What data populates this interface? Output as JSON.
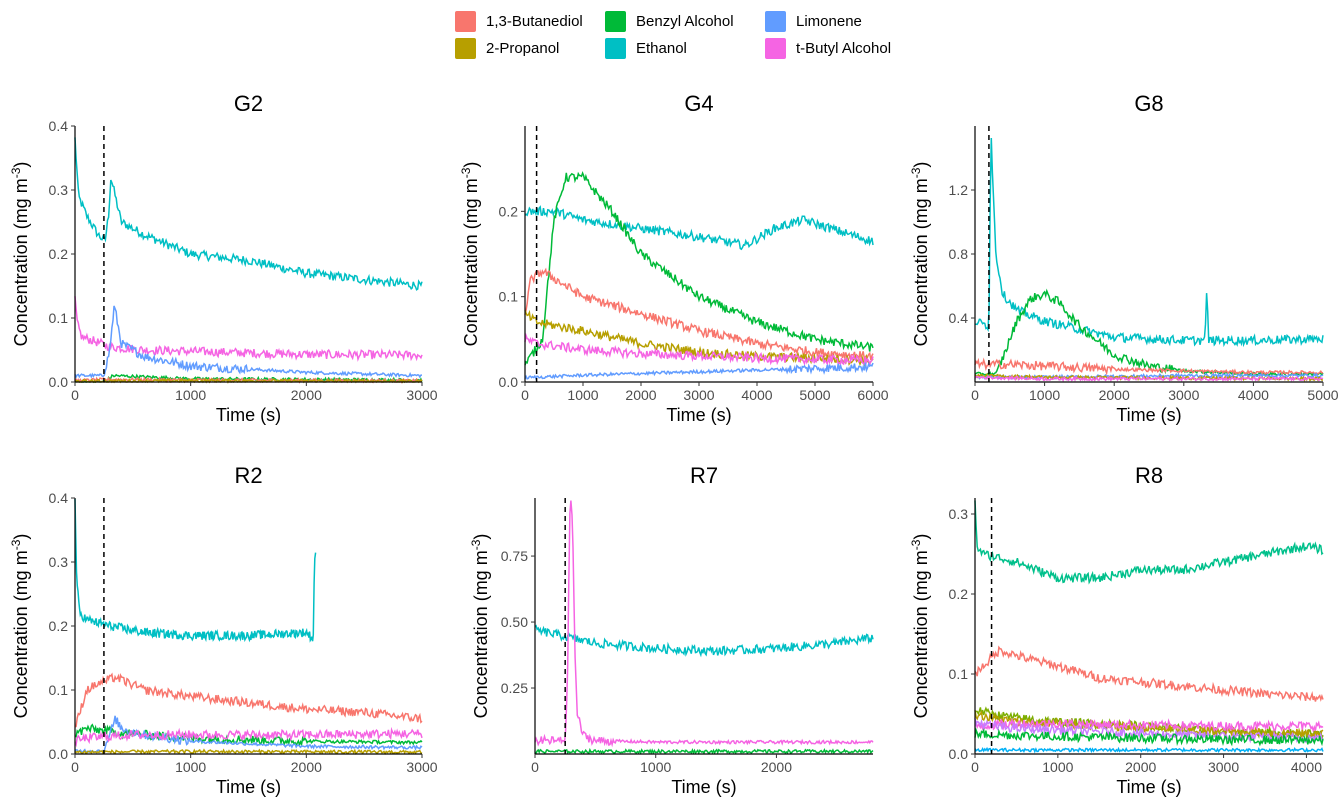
{
  "legend": [
    {
      "name": "1,3-Butanediol",
      "color": "#F8766D"
    },
    {
      "name": "2-Propanol",
      "color": "#B79F00"
    },
    {
      "name": "Benzyl Alcohol",
      "color": "#00BA38"
    },
    {
      "name": "Ethanol",
      "color": "#00BFC4"
    },
    {
      "name": "Limonene",
      "color": "#619CFF"
    },
    {
      "name": "t-Butyl Alcohol",
      "color": "#F564E3"
    }
  ],
  "chart_data": [
    {
      "type": "line",
      "title": "G2",
      "xlabel": "Time (s)",
      "ylabel": "Concentration (mg m-3)",
      "xlim": [
        0,
        3000
      ],
      "ylim": [
        0,
        0.4
      ],
      "xticks": [
        0,
        1000,
        2000,
        3000
      ],
      "yticks": [
        0.0,
        0.1,
        0.2,
        0.3,
        0.4
      ],
      "xtick_labels": [
        "0",
        "1000",
        "2000",
        "3000"
      ],
      "ytick_labels": [
        "0.0",
        "0.1",
        "0.2",
        "0.3",
        "0.4"
      ],
      "vline": 250,
      "series": [
        {
          "name": "Ethanol",
          "color": "#00BFC4",
          "x": [
            0,
            30,
            100,
            200,
            260,
            290,
            310,
            400,
            600,
            1000,
            1500,
            2000,
            2500,
            3000
          ],
          "y": [
            0.38,
            0.29,
            0.26,
            0.23,
            0.22,
            0.26,
            0.32,
            0.25,
            0.23,
            0.2,
            0.19,
            0.17,
            0.16,
            0.15
          ]
        },
        {
          "name": "t-Butyl Alcohol",
          "color": "#F564E3",
          "x": [
            0,
            20,
            60,
            150,
            300,
            600,
            1000,
            2000,
            3000
          ],
          "y": [
            0.13,
            0.09,
            0.07,
            0.065,
            0.055,
            0.05,
            0.048,
            0.043,
            0.042
          ]
        },
        {
          "name": "Limonene",
          "color": "#619CFF",
          "x": [
            0,
            250,
            300,
            340,
            400,
            600,
            1000,
            2000,
            3000
          ],
          "y": [
            0.01,
            0.01,
            0.05,
            0.12,
            0.06,
            0.04,
            0.025,
            0.015,
            0.01
          ]
        },
        {
          "name": "Benzyl Alcohol",
          "color": "#00BA38",
          "x": [
            0,
            250,
            330,
            600,
            1000,
            3000
          ],
          "y": [
            0.0,
            0.0,
            0.01,
            0.008,
            0.005,
            0.003
          ]
        },
        {
          "name": "1,3-Butanediol",
          "color": "#F8766D",
          "x": [
            0,
            300,
            1000,
            3000
          ],
          "y": [
            0.002,
            0.004,
            0.003,
            0.002
          ]
        },
        {
          "name": "2-Propanol",
          "color": "#B79F00",
          "x": [
            0,
            1000,
            3000
          ],
          "y": [
            0.001,
            0.002,
            0.001
          ]
        }
      ]
    },
    {
      "type": "line",
      "title": "G4",
      "xlabel": "Time (s)",
      "ylabel": "Concentration (mg m-3)",
      "xlim": [
        0,
        6000
      ],
      "ylim": [
        0,
        0.3
      ],
      "xticks": [
        0,
        1000,
        2000,
        3000,
        4000,
        5000,
        6000
      ],
      "yticks": [
        0.0,
        0.1,
        0.2
      ],
      "xtick_labels": [
        "0",
        "1000",
        "2000",
        "3000",
        "4000",
        "5000",
        "6000"
      ],
      "ytick_labels": [
        "0.0",
        "0.1",
        "0.2"
      ],
      "vline": 200,
      "series": [
        {
          "name": "Ethanol",
          "color": "#00BFC4",
          "x": [
            0,
            500,
            1000,
            2000,
            3000,
            3800,
            4300,
            4800,
            5500,
            6000
          ],
          "y": [
            0.2,
            0.2,
            0.19,
            0.18,
            0.17,
            0.16,
            0.18,
            0.19,
            0.175,
            0.165
          ]
        },
        {
          "name": "Benzyl Alcohol",
          "color": "#00BA38",
          "x": [
            0,
            300,
            500,
            700,
            1000,
            1500,
            2000,
            3000,
            4000,
            5000,
            6000
          ],
          "y": [
            0.02,
            0.05,
            0.19,
            0.24,
            0.24,
            0.2,
            0.15,
            0.1,
            0.07,
            0.05,
            0.04
          ]
        },
        {
          "name": "1,3-Butanediol",
          "color": "#F8766D",
          "x": [
            0,
            100,
            300,
            1000,
            2000,
            3000,
            4000,
            5000,
            6000
          ],
          "y": [
            0.08,
            0.12,
            0.13,
            0.1,
            0.08,
            0.06,
            0.045,
            0.035,
            0.03
          ]
        },
        {
          "name": "2-Propanol",
          "color": "#B79F00",
          "x": [
            0,
            200,
            1000,
            2000,
            3000,
            4000,
            5000,
            6000
          ],
          "y": [
            0.08,
            0.07,
            0.06,
            0.045,
            0.035,
            0.03,
            0.028,
            0.025
          ]
        },
        {
          "name": "t-Butyl Alcohol",
          "color": "#F564E3",
          "x": [
            0,
            200,
            1000,
            2000,
            4000,
            6000
          ],
          "y": [
            0.05,
            0.045,
            0.038,
            0.033,
            0.028,
            0.025
          ]
        },
        {
          "name": "Limonene",
          "color": "#619CFF",
          "x": [
            0,
            1000,
            2000,
            3000,
            4000,
            5000,
            6000
          ],
          "y": [
            0.005,
            0.008,
            0.01,
            0.012,
            0.014,
            0.016,
            0.018
          ]
        }
      ]
    },
    {
      "type": "line",
      "title": "G8",
      "xlabel": "Time (s)",
      "ylabel": "Concentration (mg m-3)",
      "xlim": [
        0,
        5000
      ],
      "ylim": [
        0,
        1.6
      ],
      "xticks": [
        0,
        1000,
        2000,
        3000,
        4000,
        5000
      ],
      "yticks": [
        0.4,
        0.8,
        1.2
      ],
      "xtick_labels": [
        "0",
        "1000",
        "2000",
        "3000",
        "4000",
        "5000"
      ],
      "ytick_labels": [
        "0.4",
        "0.8",
        "1.2"
      ],
      "vline": 200,
      "series": [
        {
          "name": "Ethanol",
          "color": "#00BFC4",
          "x": [
            0,
            200,
            230,
            260,
            300,
            400,
            600,
            1000,
            1500,
            2000,
            3000,
            3300,
            3330,
            3360,
            4000,
            5000
          ],
          "y": [
            0.38,
            0.35,
            1.6,
            1.2,
            0.8,
            0.55,
            0.45,
            0.38,
            0.33,
            0.28,
            0.26,
            0.26,
            0.55,
            0.26,
            0.26,
            0.27
          ]
        },
        {
          "name": "Benzyl Alcohol",
          "color": "#00BA38",
          "x": [
            0,
            300,
            400,
            600,
            800,
            1000,
            1200,
            1500,
            2000,
            2500,
            3000,
            4000,
            5000
          ],
          "y": [
            0.05,
            0.05,
            0.15,
            0.38,
            0.52,
            0.55,
            0.5,
            0.35,
            0.17,
            0.1,
            0.07,
            0.05,
            0.05
          ]
        },
        {
          "name": "1,3-Butanediol",
          "color": "#F8766D",
          "x": [
            0,
            500,
            1000,
            2000,
            3000,
            4000,
            5000
          ],
          "y": [
            0.11,
            0.11,
            0.1,
            0.08,
            0.07,
            0.06,
            0.06
          ]
        },
        {
          "name": "Limonene",
          "color": "#619CFF",
          "x": [
            0,
            1000,
            3000,
            5000
          ],
          "y": [
            0.03,
            0.03,
            0.04,
            0.04
          ]
        },
        {
          "name": "2-Propanol",
          "color": "#B79F00",
          "x": [
            0,
            1000,
            5000
          ],
          "y": [
            0.04,
            0.03,
            0.02
          ]
        },
        {
          "name": "t-Butyl Alcohol",
          "color": "#F564E3",
          "x": [
            0,
            1000,
            5000
          ],
          "y": [
            0.03,
            0.02,
            0.02
          ]
        }
      ]
    },
    {
      "type": "line",
      "title": "R2",
      "xlabel": "Time (s)",
      "ylabel": "Concentration (mg m-3)",
      "xlim": [
        0,
        3000
      ],
      "ylim": [
        0,
        0.4
      ],
      "xticks": [
        0,
        1000,
        2000,
        3000
      ],
      "yticks": [
        0.0,
        0.1,
        0.2,
        0.3,
        0.4
      ],
      "xtick_labels": [
        "0",
        "1000",
        "2000",
        "3000"
      ],
      "ytick_labels": [
        "0.0",
        "0.1",
        "0.2",
        "0.3",
        "0.4"
      ],
      "vline": 250,
      "series": [
        {
          "name": "Ethanol",
          "color": "#00BFC4",
          "x": [
            0,
            10,
            20,
            40,
            100,
            300,
            600,
            1000,
            1500,
            2000,
            2060,
            2070,
            2080
          ],
          "y": [
            0.4,
            0.3,
            0.26,
            0.22,
            0.21,
            0.2,
            0.19,
            0.185,
            0.185,
            0.19,
            0.18,
            0.3,
            0.32
          ]
        },
        {
          "name": "1,3-Butanediol",
          "color": "#F8766D",
          "x": [
            0,
            100,
            200,
            350,
            600,
            1000,
            1500,
            2000,
            2500,
            3000
          ],
          "y": [
            0.04,
            0.1,
            0.11,
            0.12,
            0.1,
            0.09,
            0.08,
            0.07,
            0.065,
            0.055
          ]
        },
        {
          "name": "Benzyl Alcohol",
          "color": "#00BA38",
          "x": [
            0,
            100,
            300,
            600,
            1000,
            2000,
            3000
          ],
          "y": [
            0.03,
            0.04,
            0.035,
            0.03,
            0.025,
            0.02,
            0.018
          ]
        },
        {
          "name": "Limonene",
          "color": "#619CFF",
          "x": [
            0,
            250,
            300,
            350,
            400,
            600,
            1000,
            2000,
            3000
          ],
          "y": [
            0.005,
            0.005,
            0.03,
            0.055,
            0.04,
            0.03,
            0.02,
            0.012,
            0.01
          ]
        },
        {
          "name": "t-Butyl Alcohol",
          "color": "#F564E3",
          "x": [
            0,
            100,
            500,
            1000,
            2000,
            3000
          ],
          "y": [
            0.02,
            0.025,
            0.03,
            0.03,
            0.03,
            0.032
          ]
        },
        {
          "name": "2-Propanol",
          "color": "#B79F00",
          "x": [
            0,
            1000,
            3000
          ],
          "y": [
            0.003,
            0.004,
            0.003
          ]
        }
      ]
    },
    {
      "type": "line",
      "title": "R7",
      "xlabel": "Time (s)",
      "ylabel": "Concentration (mg m-3)",
      "xlim": [
        0,
        2800
      ],
      "ylim": [
        0,
        0.97
      ],
      "xticks": [
        0,
        1000,
        2000
      ],
      "yticks": [
        0.25,
        0.5,
        0.75
      ],
      "xtick_labels": [
        "0",
        "1000",
        "2000"
      ],
      "ytick_labels": [
        "0.25",
        "0.50",
        "0.75"
      ],
      "vline": 250,
      "series": [
        {
          "name": "Ethanol",
          "color": "#00BFC4",
          "x": [
            0,
            200,
            500,
            1000,
            1500,
            2000,
            2500,
            2800
          ],
          "y": [
            0.47,
            0.45,
            0.42,
            0.4,
            0.39,
            0.4,
            0.42,
            0.44
          ]
        },
        {
          "name": "t-Butyl Alcohol",
          "color": "#F564E3",
          "x": [
            0,
            250,
            270,
            290,
            310,
            330,
            350,
            400,
            500,
            1000,
            2800
          ],
          "y": [
            0.05,
            0.05,
            0.3,
            0.97,
            0.9,
            0.4,
            0.15,
            0.07,
            0.05,
            0.045,
            0.045
          ]
        },
        {
          "name": "Benzyl Alcohol",
          "color": "#00BA38",
          "x": [
            0,
            2800
          ],
          "y": [
            0.01,
            0.01
          ]
        }
      ]
    },
    {
      "type": "line",
      "title": "R8",
      "xlabel": "Time (s)",
      "ylabel": "Concentration (mg m-3)",
      "xlim": [
        0,
        4200
      ],
      "ylim": [
        0,
        0.32
      ],
      "xticks": [
        0,
        1000,
        2000,
        3000,
        4000
      ],
      "yticks": [
        0.0,
        0.1,
        0.2,
        0.3
      ],
      "xtick_labels": [
        "0",
        "1000",
        "2000",
        "3000",
        "4000"
      ],
      "ytick_labels": [
        "0.0",
        "0.1",
        "0.2",
        "0.3"
      ],
      "vline": 200,
      "series": [
        {
          "name": "",
          "color": "#00C08B",
          "x": [
            0,
            20,
            100,
            500,
            1000,
            1500,
            2000,
            2500,
            3000,
            3500,
            4000,
            4200
          ],
          "y": [
            0.32,
            0.26,
            0.25,
            0.24,
            0.22,
            0.22,
            0.23,
            0.23,
            0.24,
            0.25,
            0.26,
            0.255
          ]
        },
        {
          "name": "",
          "color": "#F8766D",
          "x": [
            0,
            100,
            300,
            600,
            1000,
            1500,
            2000,
            2500,
            3000,
            3500,
            4200
          ],
          "y": [
            0.1,
            0.11,
            0.13,
            0.12,
            0.11,
            0.095,
            0.09,
            0.085,
            0.08,
            0.075,
            0.07
          ]
        },
        {
          "name": "",
          "color": "#7CAE00",
          "x": [
            0,
            200,
            500,
            1000,
            2000,
            3000,
            4200
          ],
          "y": [
            0.055,
            0.05,
            0.045,
            0.04,
            0.035,
            0.028,
            0.025
          ]
        },
        {
          "name": "",
          "color": "#B79F00",
          "x": [
            0,
            200,
            500,
            1000,
            2000,
            3000,
            4200
          ],
          "y": [
            0.05,
            0.045,
            0.04,
            0.038,
            0.033,
            0.028,
            0.025
          ]
        },
        {
          "name": "",
          "color": "#F564E3",
          "x": [
            0,
            500,
            1000,
            2000,
            3000,
            4200
          ],
          "y": [
            0.035,
            0.038,
            0.038,
            0.036,
            0.035,
            0.035
          ]
        },
        {
          "name": "",
          "color": "#C77CFF",
          "x": [
            0,
            200,
            500,
            1000,
            2000,
            3000,
            4200
          ],
          "y": [
            0.04,
            0.035,
            0.032,
            0.03,
            0.026,
            0.022,
            0.02
          ]
        },
        {
          "name": "",
          "color": "#00BA38",
          "x": [
            0,
            1000,
            2000,
            3000,
            4200
          ],
          "y": [
            0.025,
            0.022,
            0.02,
            0.018,
            0.017
          ]
        },
        {
          "name": "",
          "color": "#00B0F6",
          "x": [
            0,
            1000,
            2000,
            3000,
            4200
          ],
          "y": [
            0.005,
            0.005,
            0.005,
            0.005,
            0.005
          ]
        }
      ]
    }
  ]
}
